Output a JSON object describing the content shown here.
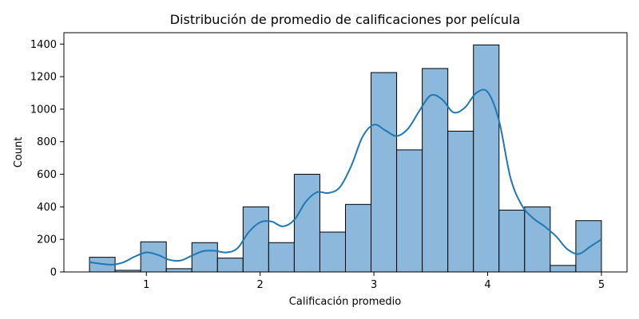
{
  "chart_data": {
    "type": "bar",
    "title": "Distribución de promedio de calificaciones por película",
    "xlabel": "Calificación promedio",
    "ylabel": "Count",
    "xlim": [
      0.275,
      5.225
    ],
    "ylim": [
      0,
      1470
    ],
    "x_ticks": [
      1,
      2,
      3,
      4,
      5
    ],
    "y_ticks": [
      0,
      200,
      400,
      600,
      800,
      1000,
      1200,
      1400
    ],
    "bin_width": 0.225,
    "bins": [
      {
        "x0": 0.5,
        "x1": 0.725,
        "count": 90
      },
      {
        "x0": 0.725,
        "x1": 0.95,
        "count": 10
      },
      {
        "x0": 0.95,
        "x1": 1.175,
        "count": 185
      },
      {
        "x0": 1.175,
        "x1": 1.4,
        "count": 20
      },
      {
        "x0": 1.4,
        "x1": 1.625,
        "count": 180
      },
      {
        "x0": 1.625,
        "x1": 1.85,
        "count": 85
      },
      {
        "x0": 1.85,
        "x1": 2.075,
        "count": 400
      },
      {
        "x0": 2.075,
        "x1": 2.3,
        "count": 180
      },
      {
        "x0": 2.3,
        "x1": 2.525,
        "count": 600
      },
      {
        "x0": 2.525,
        "x1": 2.75,
        "count": 245
      },
      {
        "x0": 2.75,
        "x1": 2.975,
        "count": 415
      },
      {
        "x0": 2.975,
        "x1": 3.2,
        "count": 1225
      },
      {
        "x0": 3.2,
        "x1": 3.425,
        "count": 750
      },
      {
        "x0": 3.425,
        "x1": 3.65,
        "count": 1250
      },
      {
        "x0": 3.65,
        "x1": 3.875,
        "count": 865
      },
      {
        "x0": 3.875,
        "x1": 4.1,
        "count": 1395
      },
      {
        "x0": 4.1,
        "x1": 4.325,
        "count": 380
      },
      {
        "x0": 4.325,
        "x1": 4.55,
        "count": 400
      },
      {
        "x0": 4.55,
        "x1": 4.775,
        "count": 40
      },
      {
        "x0": 4.775,
        "x1": 5.0,
        "count": 315
      }
    ],
    "kde": {
      "x": [
        0.5,
        0.6,
        0.7,
        0.8,
        0.9,
        1.0,
        1.1,
        1.2,
        1.3,
        1.4,
        1.5,
        1.6,
        1.7,
        1.8,
        1.9,
        2.0,
        2.1,
        2.2,
        2.3,
        2.4,
        2.5,
        2.6,
        2.7,
        2.8,
        2.9,
        3.0,
        3.1,
        3.2,
        3.3,
        3.4,
        3.5,
        3.6,
        3.7,
        3.8,
        3.9,
        4.0,
        4.1,
        4.2,
        4.3,
        4.4,
        4.5,
        4.6,
        4.7,
        4.8,
        4.9,
        5.0
      ],
      "y": [
        60,
        50,
        45,
        60,
        95,
        120,
        105,
        75,
        70,
        100,
        128,
        130,
        120,
        145,
        245,
        305,
        310,
        280,
        320,
        430,
        490,
        485,
        520,
        650,
        830,
        905,
        870,
        835,
        880,
        990,
        1085,
        1060,
        980,
        1010,
        1100,
        1105,
        930,
        580,
        410,
        330,
        280,
        220,
        140,
        110,
        155,
        200
      ]
    },
    "colors": {
      "bar_fill": "#8cb9db",
      "bar_edge": "#000000",
      "kde_line": "#1f77b4",
      "axes": "#000000"
    },
    "grid": false,
    "legend": "none"
  }
}
